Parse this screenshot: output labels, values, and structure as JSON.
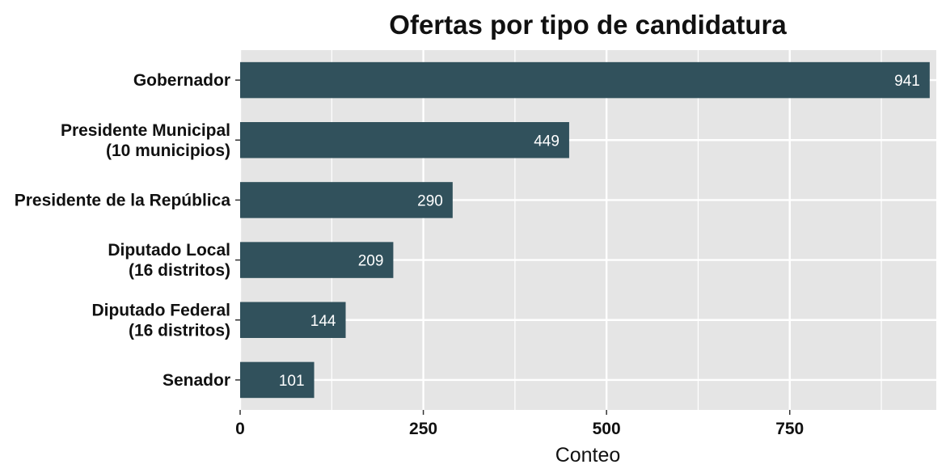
{
  "chart_data": {
    "type": "bar",
    "orientation": "horizontal",
    "title": "Ofertas por tipo de candidatura",
    "xlabel": "Conteo",
    "ylabel": "",
    "categories": [
      [
        "Gobernador"
      ],
      [
        "Presidente Municipal",
        "(10 municipios)"
      ],
      [
        "Presidente de la República"
      ],
      [
        "Diputado Local",
        "(16 distritos)"
      ],
      [
        "Diputado Federal",
        "(16 distritos)"
      ],
      [
        "Senador"
      ]
    ],
    "values": [
      941,
      449,
      290,
      209,
      144,
      101
    ],
    "data_labels": [
      "941",
      "449",
      "290",
      "209",
      "144",
      "101"
    ],
    "xticks": [
      0,
      250,
      500,
      750
    ],
    "xtick_labels": [
      "0",
      "250",
      "500",
      "750"
    ],
    "xlim": [
      0,
      950
    ],
    "grid": true,
    "colors": {
      "bar": "#31515c",
      "panel": "#e5e5e5",
      "grid": "#ffffff"
    }
  }
}
